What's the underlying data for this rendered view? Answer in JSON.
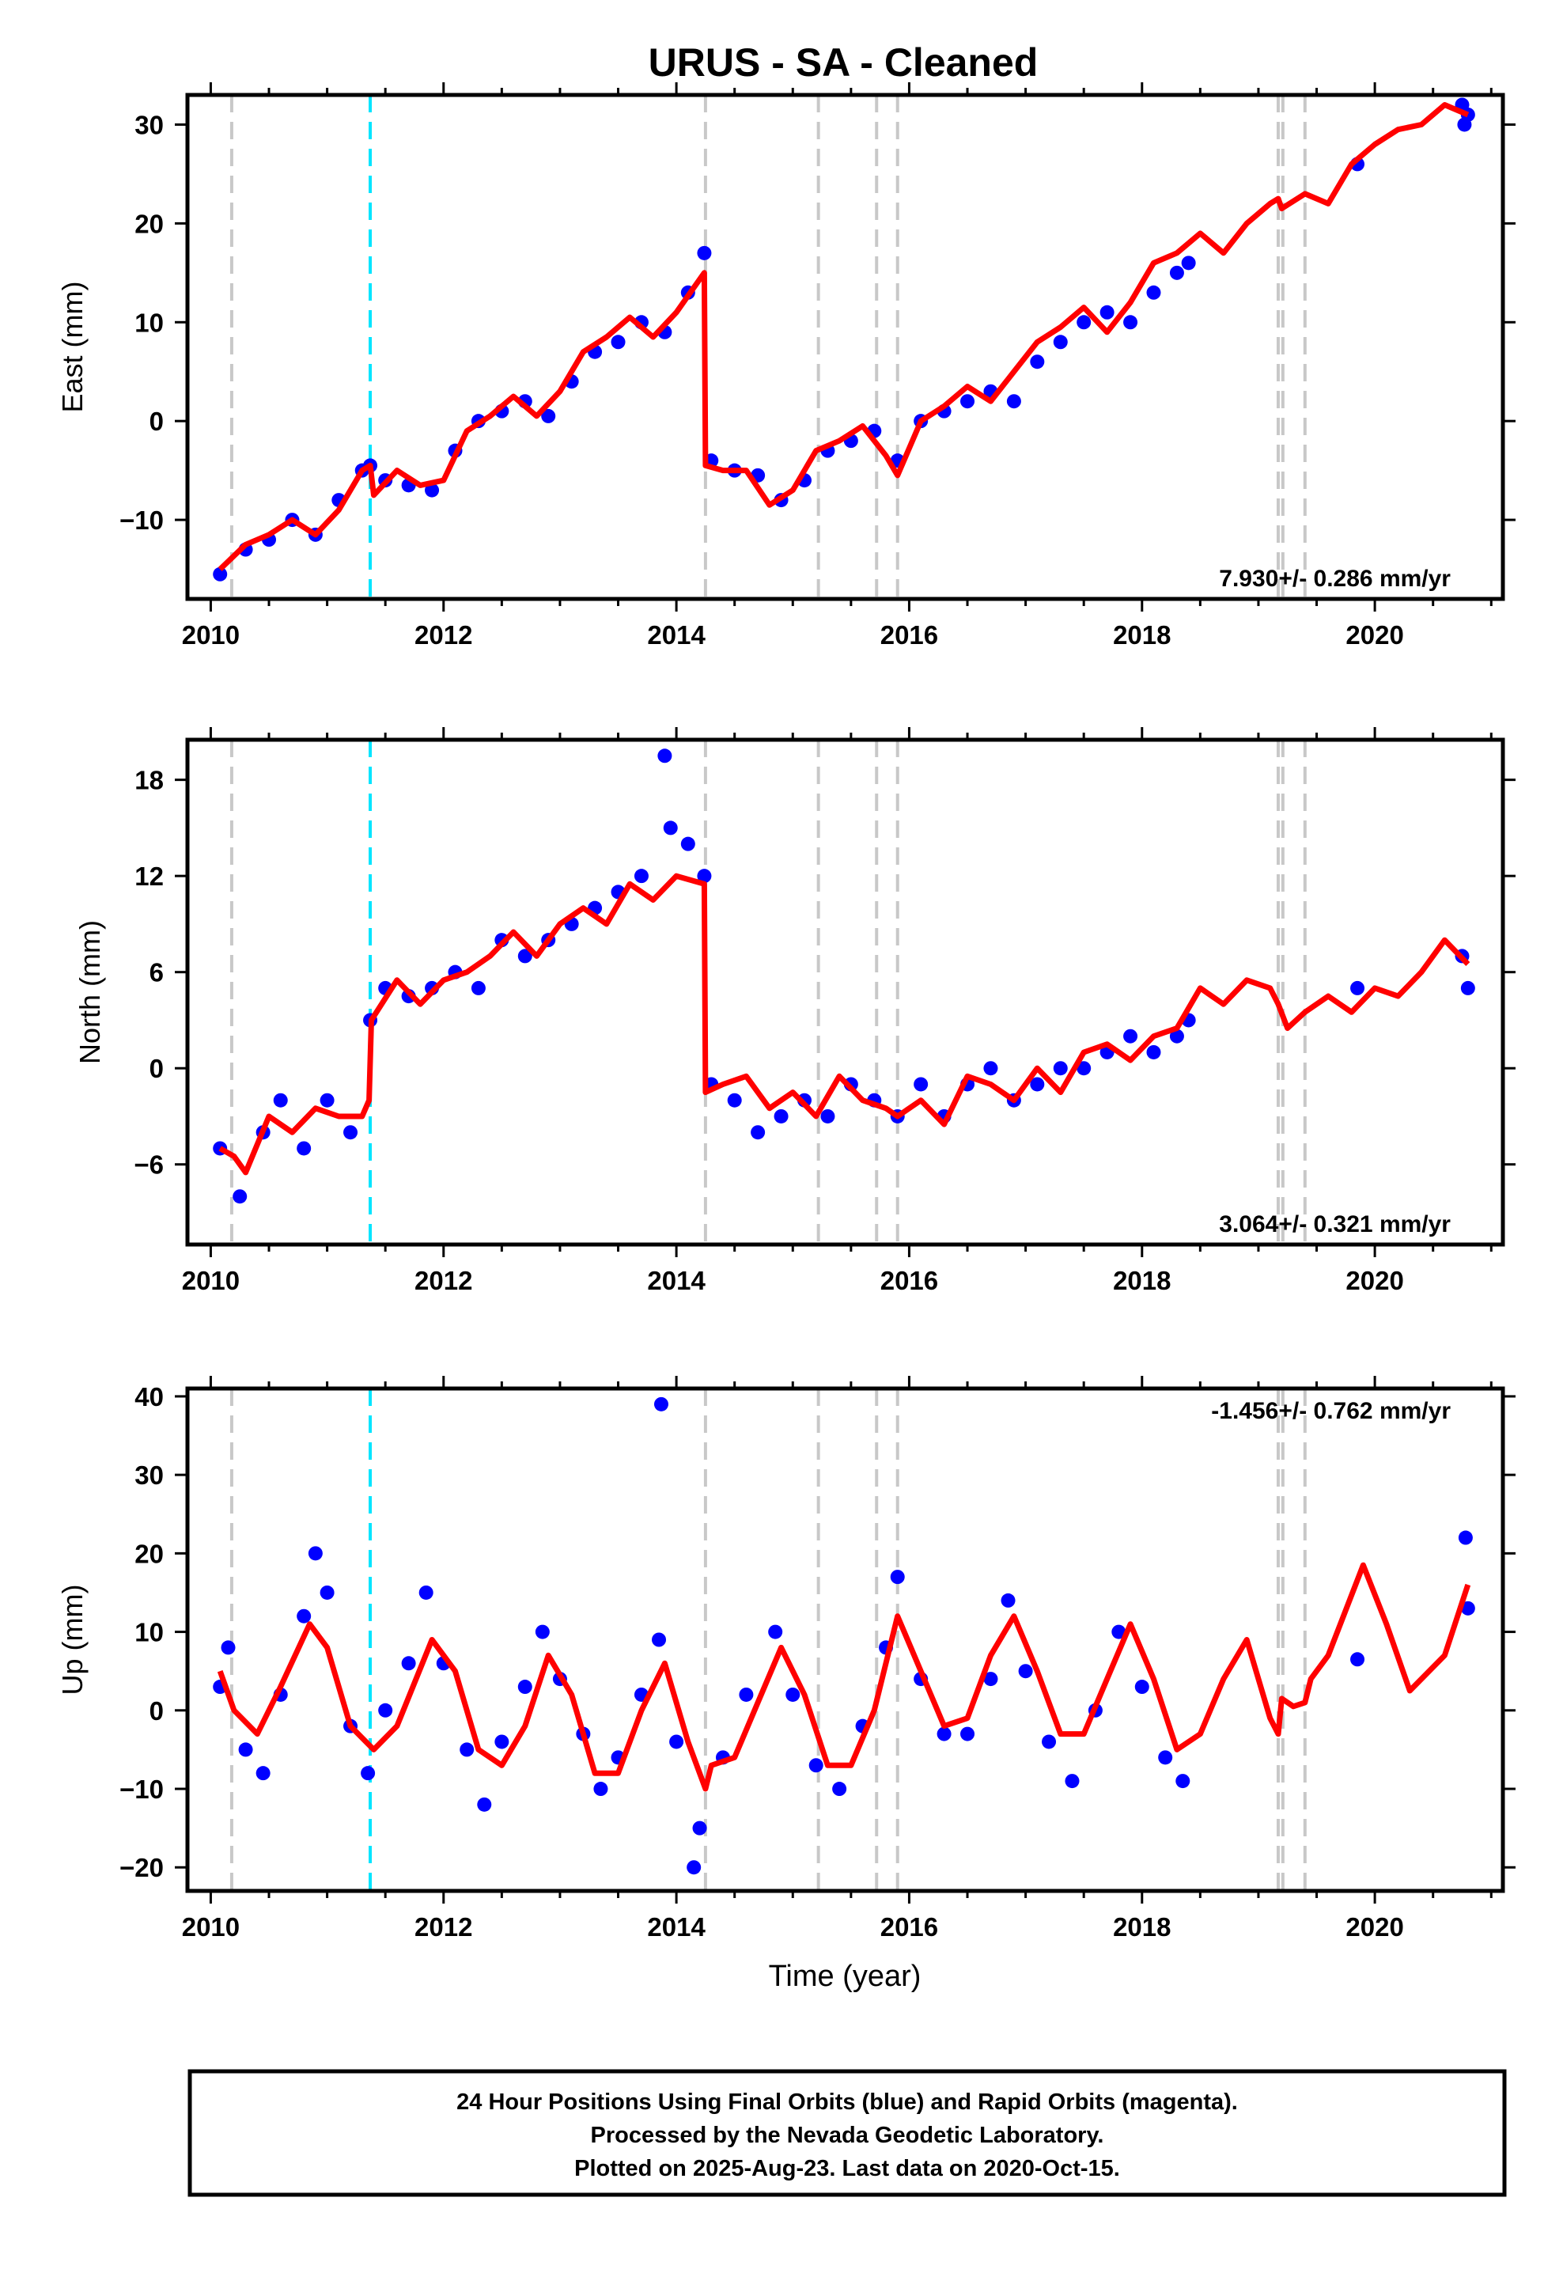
{
  "chart_data": [
    {
      "type": "scatter",
      "title": "URUS  - SA - Cleaned",
      "ylabel": "East (mm)",
      "xlim": [
        2009.8,
        2021.1
      ],
      "ylim": [
        -18,
        33
      ],
      "xticks": [
        2010,
        2012,
        2014,
        2016,
        2018,
        2020
      ],
      "yticks": [
        -10,
        0,
        10,
        20,
        30
      ],
      "rate_label": "7.930+/- 0.286 mm/yr",
      "rate_position": "bottom-right",
      "grid": false,
      "vlines_gray": [
        2010.18,
        2014.25,
        2015.22,
        2015.72,
        2015.9,
        2019.17,
        2019.21,
        2019.4
      ],
      "vlines_cyan": [
        2011.37
      ],
      "series": [
        {
          "color": "#0000ff",
          "x": [
            2010.08,
            2010.3,
            2010.5,
            2010.7,
            2010.9,
            2011.1,
            2011.3,
            2011.37,
            2011.5,
            2011.7,
            2011.9,
            2012.1,
            2012.3,
            2012.5,
            2012.7,
            2012.9,
            2013.1,
            2013.3,
            2013.5,
            2013.7,
            2013.9,
            2014.1,
            2014.24,
            2014.3,
            2014.5,
            2014.7,
            2014.9,
            2015.1,
            2015.3,
            2015.5,
            2015.7,
            2015.9,
            2016.1,
            2016.3,
            2016.5,
            2016.7,
            2016.9,
            2017.1,
            2017.3,
            2017.5,
            2017.7,
            2017.9,
            2018.1,
            2018.3,
            2018.4,
            2019.85,
            2020.75,
            2020.77,
            2020.8
          ],
          "y": [
            -15.5,
            -13,
            -12,
            -10,
            -11.5,
            -8,
            -5,
            -4.5,
            -6,
            -6.5,
            -7,
            -3,
            0,
            1,
            2,
            0.5,
            4,
            7,
            8,
            10,
            9,
            13,
            17,
            -4,
            -5,
            -5.5,
            -8,
            -6,
            -3,
            -2,
            -1,
            -4,
            0,
            1,
            2,
            3,
            2,
            6,
            8,
            10,
            11,
            10,
            13,
            15,
            16,
            26,
            32,
            30,
            31
          ]
        },
        {
          "color": "#ff0000",
          "x": [
            2010.08,
            2010.3,
            2010.5,
            2010.7,
            2010.9,
            2011.1,
            2011.3,
            2011.37,
            2011.4,
            2011.6,
            2011.8,
            2012.0,
            2012.2,
            2012.4,
            2012.6,
            2012.8,
            2013.0,
            2013.2,
            2013.4,
            2013.6,
            2013.8,
            2014.0,
            2014.24,
            2014.25,
            2014.4,
            2014.6,
            2014.8,
            2015.0,
            2015.2,
            2015.4,
            2015.6,
            2015.8,
            2015.9,
            2016.1,
            2016.3,
            2016.5,
            2016.7,
            2016.9,
            2017.1,
            2017.3,
            2017.5,
            2017.7,
            2017.9,
            2018.1,
            2018.3,
            2018.5,
            2018.7,
            2018.9,
            2019.1,
            2019.17,
            2019.2,
            2019.4,
            2019.6,
            2019.8,
            2020.0,
            2020.2,
            2020.4,
            2020.6,
            2020.8
          ],
          "y": [
            -15,
            -12.5,
            -11.5,
            -10,
            -11.5,
            -9,
            -5,
            -4.5,
            -7.5,
            -5,
            -6.5,
            -6,
            -1,
            0.5,
            2.5,
            0.5,
            3,
            7,
            8.5,
            10.5,
            8.5,
            11,
            15,
            -4.5,
            -5,
            -5,
            -8.5,
            -7,
            -3,
            -2,
            -0.5,
            -3.5,
            -5.5,
            0,
            1.5,
            3.5,
            2,
            5,
            8,
            9.5,
            11.5,
            9,
            12,
            16,
            17,
            19,
            17,
            20,
            22,
            22.5,
            21.5,
            23,
            22,
            26,
            28,
            29.5,
            30,
            32,
            31
          ]
        }
      ]
    },
    {
      "type": "scatter",
      "ylabel": "North (mm)",
      "xlim": [
        2009.8,
        2021.1
      ],
      "ylim": [
        -11,
        20.5
      ],
      "xticks": [
        2010,
        2012,
        2014,
        2016,
        2018,
        2020
      ],
      "yticks": [
        -6,
        0,
        6,
        12,
        18
      ],
      "rate_label": "3.064+/- 0.321 mm/yr",
      "rate_position": "bottom-right",
      "grid": false,
      "vlines_gray": [
        2010.18,
        2014.25,
        2015.22,
        2015.72,
        2015.9,
        2019.17,
        2019.21,
        2019.4
      ],
      "vlines_cyan": [
        2011.37
      ],
      "series": [
        {
          "color": "#0000ff",
          "x": [
            2010.08,
            2010.25,
            2010.45,
            2010.6,
            2010.8,
            2011.0,
            2011.2,
            2011.37,
            2011.5,
            2011.7,
            2011.9,
            2012.1,
            2012.3,
            2012.5,
            2012.7,
            2012.9,
            2013.1,
            2013.3,
            2013.5,
            2013.7,
            2013.9,
            2013.95,
            2014.1,
            2014.24,
            2014.3,
            2014.5,
            2014.7,
            2014.9,
            2015.1,
            2015.3,
            2015.5,
            2015.7,
            2015.9,
            2016.1,
            2016.3,
            2016.5,
            2016.7,
            2016.9,
            2017.1,
            2017.3,
            2017.5,
            2017.7,
            2017.9,
            2018.1,
            2018.3,
            2018.4,
            2019.85,
            2020.75,
            2020.8
          ],
          "y": [
            -5,
            -8,
            -4,
            -2,
            -5,
            -2,
            -4,
            3,
            5,
            4.5,
            5,
            6,
            5,
            8,
            7,
            8,
            9,
            10,
            11,
            12,
            19.5,
            15,
            14,
            12,
            -1,
            -2,
            -4,
            -3,
            -2,
            -3,
            -1,
            -2,
            -3,
            -1,
            -3,
            -1,
            0,
            -2,
            -1,
            0,
            0,
            1,
            2,
            1,
            2,
            3,
            5,
            7,
            5
          ]
        },
        {
          "color": "#ff0000",
          "x": [
            2010.08,
            2010.2,
            2010.3,
            2010.5,
            2010.7,
            2010.9,
            2011.1,
            2011.3,
            2011.36,
            2011.38,
            2011.6,
            2011.8,
            2012.0,
            2012.2,
            2012.4,
            2012.6,
            2012.8,
            2013.0,
            2013.2,
            2013.4,
            2013.6,
            2013.8,
            2014.0,
            2014.24,
            2014.25,
            2014.4,
            2014.6,
            2014.8,
            2015.0,
            2015.2,
            2015.4,
            2015.6,
            2015.8,
            2015.9,
            2016.1,
            2016.3,
            2016.5,
            2016.7,
            2016.9,
            2017.1,
            2017.3,
            2017.5,
            2017.7,
            2017.9,
            2018.1,
            2018.3,
            2018.5,
            2018.7,
            2018.9,
            2019.1,
            2019.17,
            2019.25,
            2019.4,
            2019.6,
            2019.8,
            2020.0,
            2020.2,
            2020.4,
            2020.6,
            2020.8
          ],
          "y": [
            -5,
            -5.5,
            -6.5,
            -3,
            -4,
            -2.5,
            -3,
            -3,
            -2,
            3,
            5.5,
            4,
            5.5,
            6,
            7,
            8.5,
            7,
            9,
            10,
            9,
            11.5,
            10.5,
            12,
            11.5,
            -1.5,
            -1,
            -0.5,
            -2.5,
            -1.5,
            -3,
            -0.5,
            -2,
            -2.5,
            -3,
            -2,
            -3.5,
            -0.5,
            -1,
            -2,
            0,
            -1.5,
            1,
            1.5,
            0.5,
            2,
            2.5,
            5,
            4,
            5.5,
            5,
            4,
            2.5,
            3.5,
            4.5,
            3.5,
            5,
            4.5,
            6,
            8,
            6.5
          ]
        }
      ]
    },
    {
      "type": "scatter",
      "ylabel": "Up (mm)",
      "xlabel": "Time (year)",
      "xlim": [
        2009.8,
        2021.1
      ],
      "ylim": [
        -23,
        41
      ],
      "xticks": [
        2010,
        2012,
        2014,
        2016,
        2018,
        2020
      ],
      "yticks": [
        -20,
        -10,
        0,
        10,
        20,
        30,
        40
      ],
      "rate_label": "-1.456+/- 0.762 mm/yr",
      "rate_position": "top-right",
      "grid": false,
      "vlines_gray": [
        2010.18,
        2014.25,
        2015.22,
        2015.72,
        2015.9,
        2019.17,
        2019.21,
        2019.4
      ],
      "vlines_cyan": [
        2011.37
      ],
      "series": [
        {
          "color": "#0000ff",
          "x": [
            2010.08,
            2010.15,
            2010.3,
            2010.45,
            2010.6,
            2010.8,
            2010.9,
            2011.0,
            2011.2,
            2011.35,
            2011.5,
            2011.7,
            2011.85,
            2012.0,
            2012.2,
            2012.35,
            2012.5,
            2012.7,
            2012.85,
            2013.0,
            2013.2,
            2013.35,
            2013.5,
            2013.7,
            2013.85,
            2013.87,
            2014.0,
            2014.2,
            2014.15,
            2014.4,
            2014.6,
            2014.85,
            2015.0,
            2015.2,
            2015.4,
            2015.6,
            2015.8,
            2015.9,
            2016.1,
            2016.3,
            2016.5,
            2016.7,
            2016.85,
            2017.0,
            2017.2,
            2017.4,
            2017.6,
            2017.8,
            2018.0,
            2018.2,
            2018.35,
            2019.85,
            2020.78,
            2020.8
          ],
          "y": [
            3,
            8,
            -5,
            -8,
            2,
            12,
            20,
            15,
            -2,
            -8,
            0,
            6,
            15,
            6,
            -5,
            -12,
            -4,
            3,
            10,
            4,
            -3,
            -10,
            -6,
            2,
            9,
            39,
            -4,
            -15,
            -20,
            -6,
            2,
            10,
            2,
            -7,
            -10,
            -2,
            8,
            17,
            4,
            -3,
            -3,
            4,
            14,
            5,
            -4,
            -9,
            0,
            10,
            3,
            -6,
            -9,
            6.5,
            22,
            13
          ]
        },
        {
          "color": "#ff0000",
          "x": [
            2010.08,
            2010.2,
            2010.4,
            2010.6,
            2010.85,
            2011.0,
            2011.2,
            2011.4,
            2011.6,
            2011.9,
            2012.1,
            2012.3,
            2012.5,
            2012.7,
            2012.9,
            2013.1,
            2013.3,
            2013.5,
            2013.7,
            2013.9,
            2014.1,
            2014.25,
            2014.3,
            2014.5,
            2014.7,
            2014.9,
            2015.1,
            2015.3,
            2015.5,
            2015.7,
            2015.9,
            2016.1,
            2016.3,
            2016.5,
            2016.7,
            2016.9,
            2017.1,
            2017.3,
            2017.5,
            2017.7,
            2017.9,
            2018.1,
            2018.3,
            2018.5,
            2018.7,
            2018.9,
            2019.1,
            2019.17,
            2019.2,
            2019.3,
            2019.4,
            2019.45,
            2019.6,
            2019.9,
            2020.1,
            2020.3,
            2020.6,
            2020.8
          ],
          "y": [
            5,
            0,
            -3,
            3,
            11,
            8,
            -2,
            -5,
            -2,
            9,
            5,
            -5,
            -7,
            -2,
            7,
            2,
            -8,
            -8,
            0,
            6,
            -4,
            -10,
            -7,
            -6,
            1,
            8,
            2,
            -7,
            -7,
            0,
            12,
            5,
            -2,
            -1,
            7,
            12,
            5,
            -3,
            -3,
            4,
            11,
            4,
            -5,
            -3,
            4,
            9,
            -1,
            -3,
            1.5,
            0.5,
            1,
            4,
            7,
            18.5,
            11,
            2.5,
            7,
            16
          ]
        }
      ]
    }
  ],
  "caption": {
    "line1": "24 Hour Positions Using Final Orbits (blue) and Rapid Orbits (magenta).",
    "line2": "Processed by the Nevada Geodetic Laboratory.",
    "line3": "Plotted on 2025-Aug-23. Last data on 2020-Oct-15."
  }
}
